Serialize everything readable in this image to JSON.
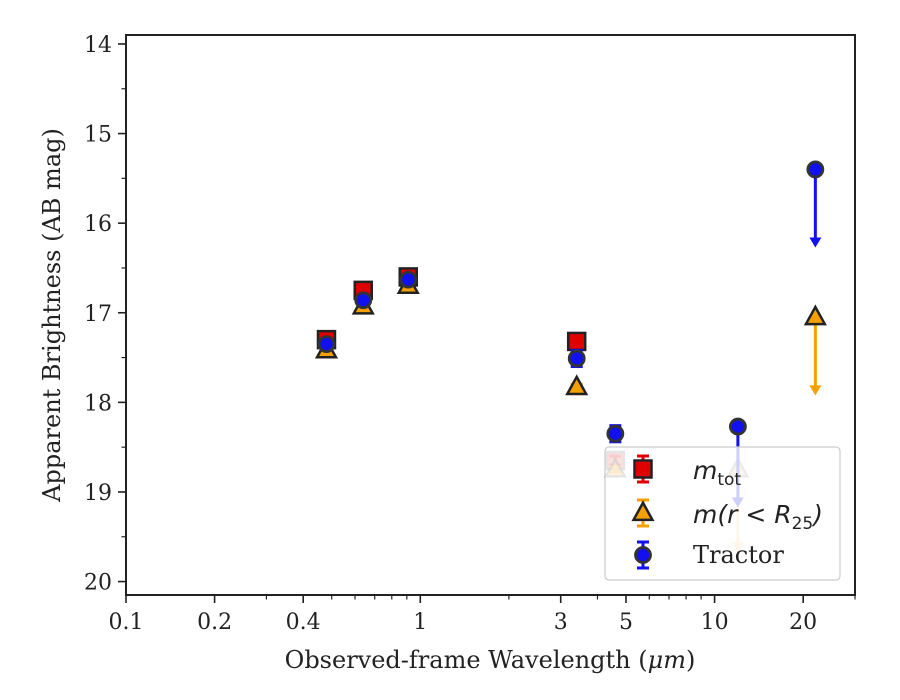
{
  "chart_data": {
    "type": "scatter",
    "xlabel": "Observed-frame Wavelength (",
    "xlabel_unit": "μm",
    "xlabel_close": ")",
    "ylabel": "Apparent Brightness (AB mag)",
    "x_scale": "log",
    "xlim": [
      0.1,
      30
    ],
    "ylim": [
      20.15,
      13.9
    ],
    "y_inverted": true,
    "x_major_ticks": [
      {
        "value": 0.1,
        "label": "0.1"
      },
      {
        "value": 0.2,
        "label": "0.2"
      },
      {
        "value": 0.4,
        "label": "0.4"
      },
      {
        "value": 1,
        "label": "1"
      },
      {
        "value": 3,
        "label": "3"
      },
      {
        "value": 5,
        "label": "5"
      },
      {
        "value": 10,
        "label": "10"
      },
      {
        "value": 20,
        "label": "20"
      }
    ],
    "x_minor_ticks": [
      0.3,
      0.5,
      0.6,
      0.7,
      0.8,
      0.9,
      2,
      4,
      6,
      7,
      8,
      9,
      30
    ],
    "y_major_ticks": [
      {
        "value": 14,
        "label": "14"
      },
      {
        "value": 15,
        "label": "15"
      },
      {
        "value": 16,
        "label": "16"
      },
      {
        "value": 17,
        "label": "17"
      },
      {
        "value": 18,
        "label": "18"
      },
      {
        "value": 19,
        "label": "19"
      },
      {
        "value": 20,
        "label": "20"
      }
    ],
    "y_minor_ticks": [
      14.5,
      15.5,
      16.5,
      17.5,
      18.5,
      19.5
    ],
    "grid": false,
    "legend_position": "lower-right",
    "series": [
      {
        "name": "m",
        "name_sub": "tot",
        "marker": "square",
        "color": "#e00000",
        "edge_color": "#222222",
        "points": [
          {
            "x": 0.48,
            "y": 17.3,
            "err": 0.05
          },
          {
            "x": 0.64,
            "y": 16.75,
            "err": 0.05
          },
          {
            "x": 0.91,
            "y": 16.6,
            "err": 0.05
          },
          {
            "x": 3.4,
            "y": 17.32,
            "err": 0.05
          },
          {
            "x": 4.6,
            "y": 18.65,
            "err": 0.05
          }
        ],
        "upper_limits": []
      },
      {
        "name": "m(r",
        "name_mid": " < R",
        "name_sub": "25",
        "name_close": ")",
        "marker": "triangle",
        "color": "#f5a000",
        "edge_color": "#222222",
        "points": [
          {
            "x": 0.48,
            "y": 17.42,
            "err": 0.03
          },
          {
            "x": 0.64,
            "y": 16.93,
            "err": 0.03
          },
          {
            "x": 0.91,
            "y": 16.7,
            "err": 0.03
          },
          {
            "x": 3.4,
            "y": 17.83,
            "err": 0.03
          },
          {
            "x": 4.6,
            "y": 18.75,
            "err": 0.03
          }
        ],
        "upper_limits": [
          {
            "x": 12.0,
            "y": 18.75,
            "y_arrow": 19.65
          },
          {
            "x": 22.0,
            "y": 17.05,
            "y_arrow": 17.9
          }
        ]
      },
      {
        "name": "Tractor",
        "marker": "circle",
        "color": "#1010f0",
        "edge_color": "#333333",
        "points": [
          {
            "x": 0.48,
            "y": 17.35,
            "err": 0.05
          },
          {
            "x": 0.64,
            "y": 16.86,
            "err": 0.05
          },
          {
            "x": 0.91,
            "y": 16.63,
            "err": 0.05
          },
          {
            "x": 3.4,
            "y": 17.51,
            "err": 0.09
          },
          {
            "x": 4.6,
            "y": 18.35,
            "err": 0.09
          }
        ],
        "upper_limits": [
          {
            "x": 12.0,
            "y": 18.27,
            "y_arrow": 19.15
          },
          {
            "x": 22.0,
            "y": 15.4,
            "y_arrow": 16.25
          }
        ]
      }
    ]
  }
}
